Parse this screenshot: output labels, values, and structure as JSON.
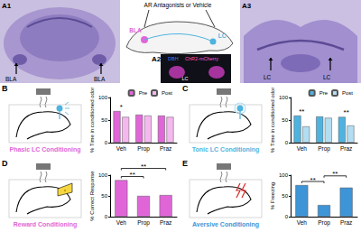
{
  "figure": {
    "A1": {
      "panel": "A1",
      "texts": [
        "BLA",
        "BLA"
      ]
    },
    "A2": {
      "panel": "A2",
      "title": "AR Antagonists or Vehicle",
      "regions": [
        "BLA",
        "LC"
      ],
      "inset": [
        "DBH",
        "ChR2-mCherry",
        "LC"
      ]
    },
    "A3": {
      "panel": "A3",
      "texts": [
        "LC",
        "LC"
      ]
    }
  },
  "chart_data": [
    {
      "panel": "B",
      "type": "bar",
      "title": "Phasic LC Conditioning",
      "y_label": "% Time in conditioned odor",
      "categories": [
        "Veh",
        "Prop",
        "Praz"
      ],
      "series": [
        {
          "name": "Pre",
          "color": "#e066d8",
          "values": [
            70,
            62,
            60
          ]
        },
        {
          "name": "Post",
          "color": "#f4b8ef",
          "values": [
            57,
            60,
            57
          ]
        }
      ],
      "ylim": [
        0,
        100
      ],
      "yticks": [
        0,
        50,
        100
      ],
      "grid": false,
      "legend": "top-right",
      "annotations": [
        {
          "text": "*",
          "from": "Veh",
          "to": "Veh"
        }
      ]
    },
    {
      "panel": "C",
      "type": "bar",
      "title": "Tonic LC Conditioning",
      "y_label": "% Time in conditioned odor",
      "categories": [
        "Veh",
        "Prop",
        "Praz"
      ],
      "series": [
        {
          "name": "Pre",
          "color": "#4fb3e0",
          "values": [
            60,
            58,
            57
          ]
        },
        {
          "name": "Post",
          "color": "#b3def2",
          "values": [
            36,
            55,
            38
          ]
        }
      ],
      "ylim": [
        0,
        100
      ],
      "yticks": [
        0,
        50,
        100
      ],
      "grid": false,
      "legend": "top-right",
      "annotations": [
        {
          "text": "**",
          "from": "Veh",
          "to": "Veh"
        },
        {
          "text": "**",
          "from": "Praz",
          "to": "Praz"
        }
      ]
    },
    {
      "panel": "D",
      "type": "bar",
      "title": "Reward Conditioning",
      "y_label": "% Correct Response",
      "categories": [
        "Veh",
        "Prop",
        "Praz"
      ],
      "values": [
        88,
        50,
        52
      ],
      "color": "#e066d8",
      "ylim": [
        0,
        100
      ],
      "yticks": [
        0,
        50,
        100
      ],
      "grid": false,
      "annotations": [
        {
          "text": "**",
          "from": "Veh",
          "to": "Prop"
        },
        {
          "text": "**",
          "from": "Veh",
          "to": "Praz"
        }
      ]
    },
    {
      "panel": "E",
      "type": "bar",
      "title": "Aversive Conditioning",
      "y_label": "% Freezing",
      "categories": [
        "Veh",
        "Prop",
        "Praz"
      ],
      "values": [
        76,
        28,
        70
      ],
      "color": "#3d94d6",
      "ylim": [
        0,
        100
      ],
      "yticks": [
        0,
        50,
        100
      ],
      "grid": false,
      "annotations": [
        {
          "text": "**",
          "from": "Veh",
          "to": "Prop"
        },
        {
          "text": "**",
          "from": "Prop",
          "to": "Praz"
        }
      ]
    }
  ]
}
